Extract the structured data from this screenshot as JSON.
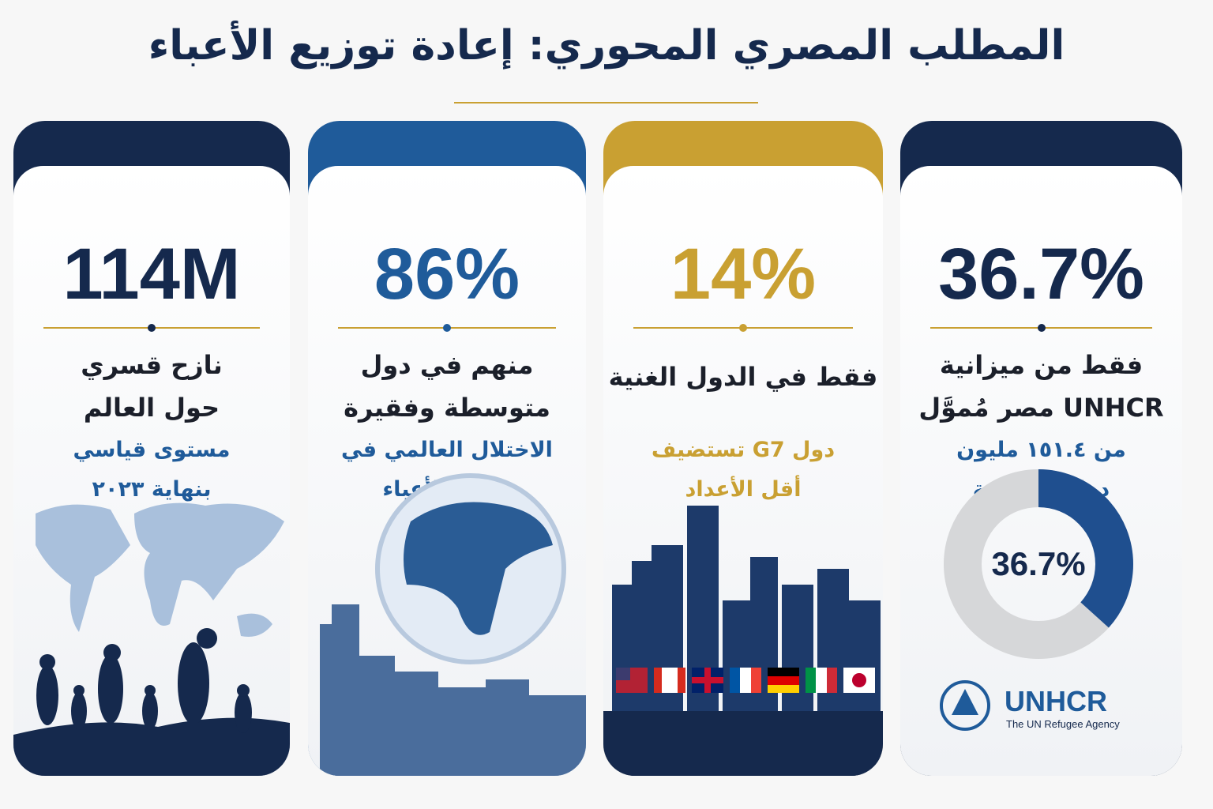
{
  "title": "المطلب المصري المحوري: إعادة توزيع الأعباء",
  "cards": [
    {
      "figure": "114M",
      "label": [
        "نازح قسري",
        "حول العالم"
      ],
      "note": [
        "مستوى قياسي",
        "بنهاية ٢٠٢٣"
      ]
    },
    {
      "figure": "86%",
      "label": [
        "منهم في دول",
        "متوسطة وفقيرة"
      ],
      "note": [
        "الاختلال العالمي في",
        "توزيع الأعباء"
      ]
    },
    {
      "figure": "14%",
      "label": [
        "فقط في الدول الغنية"
      ],
      "note": [
        "دول G7 تستضيف",
        "أقل الأعداد"
      ]
    },
    {
      "figure": "36.7%",
      "label": [
        "فقط من ميزانية",
        "UNHCR مصر مُموَّل"
      ],
      "note": [
        "من ١٥١.٤ مليون",
        "دولار مطلوبة"
      ]
    }
  ],
  "donut": {
    "value": 36.7,
    "label": "36.7%"
  },
  "logo": {
    "name": "UNHCR",
    "tagline": "The UN Refugee Agency"
  }
}
